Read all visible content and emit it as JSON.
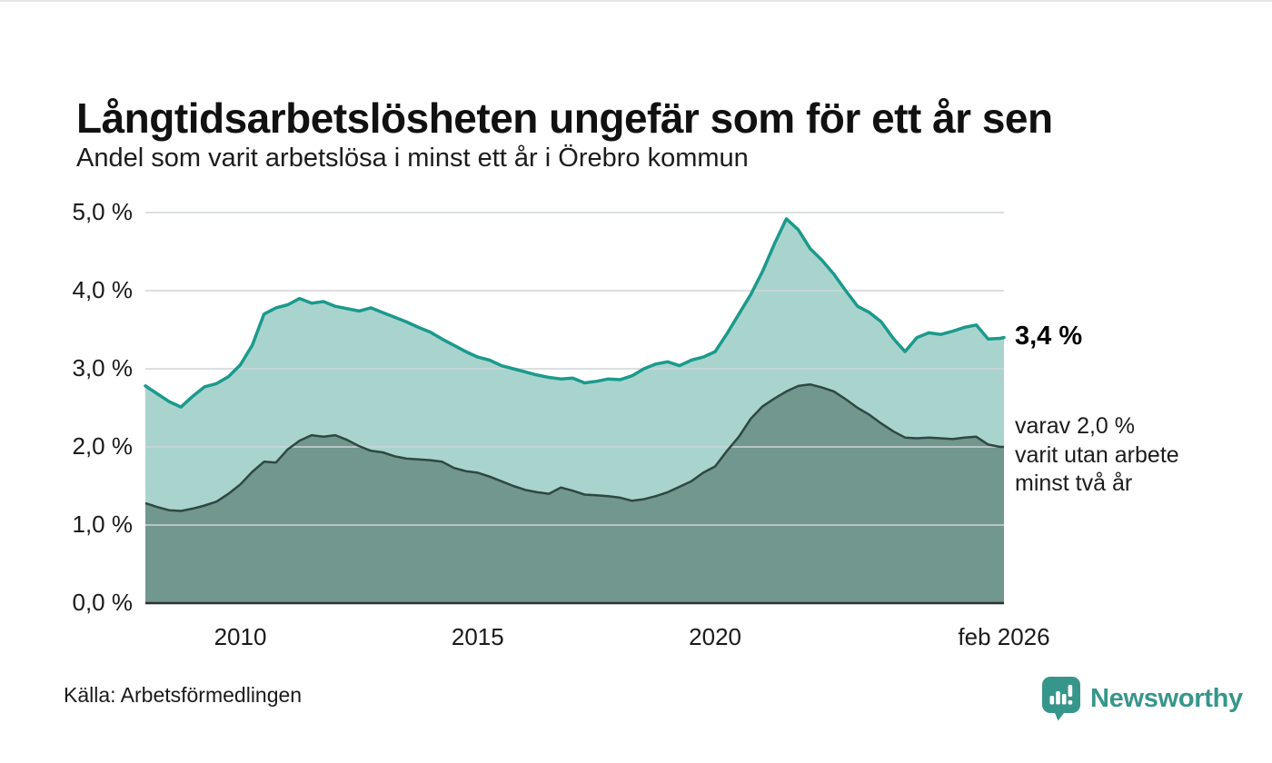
{
  "header": {
    "title": "Långtidsarbetslösheten ungefär som för ett år sen",
    "subtitle": "Andel som varit arbetslösa i minst ett år i Örebro kommun"
  },
  "annotations": {
    "latest_total": "3,4 %",
    "two_year_note": "varav 2,0 %\nvarit utan arbete\nminst två år"
  },
  "footer": {
    "source": "Källa: Arbetsförmedlingen",
    "brand": "Newsworthy"
  },
  "colors": {
    "total_line": "#1a9a8c",
    "total_fill": "#a9d4cd",
    "two_plus_line": "#2e4840",
    "two_plus_fill": "#71978f",
    "grid": "#cfd4d6",
    "baseline": "#303030",
    "brand_teal": "#37968b"
  },
  "chart_data": {
    "type": "area",
    "title": "Långtidsarbetslösheten ungefär som för ett år sen",
    "subtitle": "Andel som varit arbetslösa i minst ett år i Örebro kommun",
    "xlabel": "",
    "ylabel": "",
    "xlim": [
      2008,
      2026.083
    ],
    "ylim": [
      0,
      5
    ],
    "grid": "horizontal",
    "legend_position": "none",
    "x_ticks": [
      {
        "value": 2010,
        "label": "2010"
      },
      {
        "value": 2015,
        "label": "2015"
      },
      {
        "value": 2020,
        "label": "2020"
      },
      {
        "value": 2026.083,
        "label": "feb 2026"
      }
    ],
    "y_ticks": [
      {
        "value": 0,
        "label": "0,0 %"
      },
      {
        "value": 1,
        "label": "1,0 %"
      },
      {
        "value": 2,
        "label": "2,0 %"
      },
      {
        "value": 3,
        "label": "3,0 %"
      },
      {
        "value": 4,
        "label": "4,0 %"
      },
      {
        "value": 5,
        "label": "5,0 %"
      }
    ],
    "x": [
      2008,
      2008.25,
      2008.5,
      2008.75,
      2009,
      2009.25,
      2009.5,
      2009.75,
      2010,
      2010.25,
      2010.5,
      2010.75,
      2011,
      2011.25,
      2011.5,
      2011.75,
      2012,
      2012.25,
      2012.5,
      2012.75,
      2013,
      2013.25,
      2013.5,
      2013.75,
      2014,
      2014.25,
      2014.5,
      2014.75,
      2015,
      2015.25,
      2015.5,
      2015.75,
      2016,
      2016.25,
      2016.5,
      2016.75,
      2017,
      2017.25,
      2017.5,
      2017.75,
      2018,
      2018.25,
      2018.5,
      2018.75,
      2019,
      2019.25,
      2019.5,
      2019.75,
      2020,
      2020.25,
      2020.5,
      2020.75,
      2021,
      2021.25,
      2021.5,
      2021.75,
      2022,
      2022.25,
      2022.5,
      2022.75,
      2023,
      2023.25,
      2023.5,
      2023.75,
      2024,
      2024.25,
      2024.5,
      2024.75,
      2025,
      2025.25,
      2025.5,
      2025.75,
      2026,
      2026.083
    ],
    "series": [
      {
        "name": "Arbetslösa minst ett år",
        "latest_label": "3,4 %",
        "line_color": "#1a9a8c",
        "fill_color": "#a9d4cd",
        "line_width": 3.5,
        "values": [
          2.78,
          2.68,
          2.58,
          2.51,
          2.65,
          2.77,
          2.81,
          2.9,
          3.05,
          3.3,
          3.7,
          3.78,
          3.82,
          3.9,
          3.84,
          3.86,
          3.8,
          3.77,
          3.74,
          3.78,
          3.72,
          3.66,
          3.6,
          3.53,
          3.47,
          3.38,
          3.3,
          3.22,
          3.15,
          3.11,
          3.04,
          3.0,
          2.96,
          2.92,
          2.89,
          2.87,
          2.88,
          2.82,
          2.84,
          2.87,
          2.86,
          2.91,
          3.0,
          3.06,
          3.09,
          3.04,
          3.11,
          3.15,
          3.22,
          3.45,
          3.7,
          3.95,
          4.25,
          4.6,
          4.92,
          4.78,
          4.54,
          4.39,
          4.21,
          4.0,
          3.8,
          3.72,
          3.6,
          3.39,
          3.22,
          3.4,
          3.46,
          3.44,
          3.48,
          3.53,
          3.56,
          3.38,
          3.39,
          3.4
        ]
      },
      {
        "name": "Varav utan arbete minst två år",
        "latest_label": "varav 2,0 %",
        "line_color": "#2e4840",
        "fill_color": "#71978f",
        "line_width": 2.5,
        "values": [
          1.28,
          1.23,
          1.19,
          1.18,
          1.21,
          1.25,
          1.3,
          1.4,
          1.52,
          1.68,
          1.81,
          1.8,
          1.97,
          2.08,
          2.15,
          2.13,
          2.15,
          2.09,
          2.01,
          1.95,
          1.93,
          1.88,
          1.85,
          1.84,
          1.83,
          1.81,
          1.73,
          1.69,
          1.67,
          1.62,
          1.56,
          1.5,
          1.45,
          1.42,
          1.4,
          1.48,
          1.44,
          1.39,
          1.38,
          1.37,
          1.35,
          1.31,
          1.33,
          1.37,
          1.42,
          1.49,
          1.56,
          1.67,
          1.75,
          1.95,
          2.13,
          2.36,
          2.52,
          2.62,
          2.71,
          2.78,
          2.8,
          2.76,
          2.71,
          2.61,
          2.5,
          2.41,
          2.3,
          2.2,
          2.12,
          2.11,
          2.12,
          2.11,
          2.1,
          2.12,
          2.13,
          2.03,
          2.0,
          2.0
        ]
      }
    ]
  }
}
